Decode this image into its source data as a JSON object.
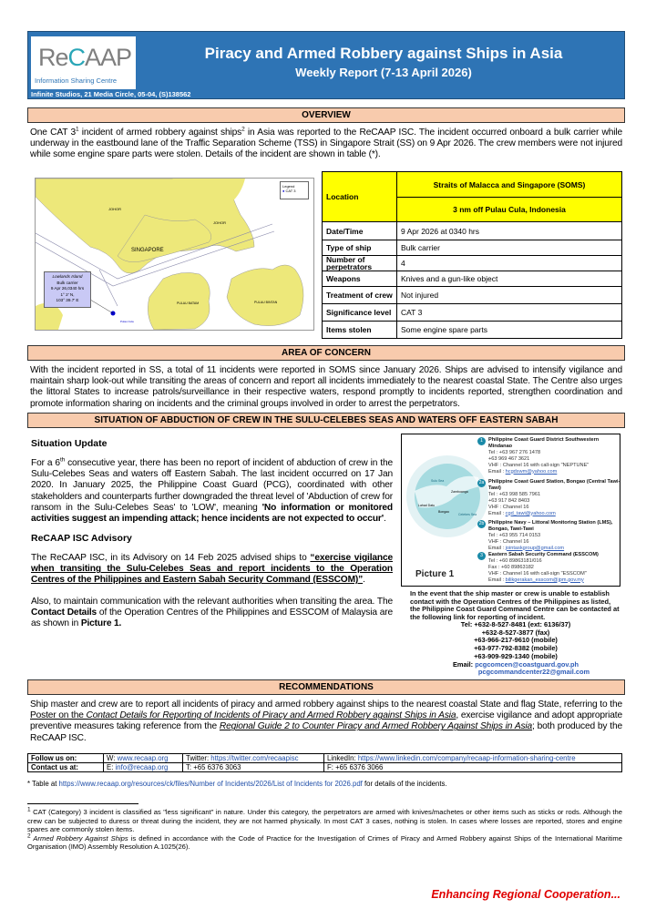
{
  "header": {
    "logo_text": "ReCAAP",
    "logo_subtitle": "Information Sharing Centre",
    "title": "Piracy and Armed Robbery against Ships in Asia",
    "subtitle": "Weekly Report (7-13 April 2026)",
    "address": "Infinite Studios, 21 Media Circle, 05-04, (S)138562",
    "brand_color": "#2e74b5"
  },
  "overview": {
    "heading": "OVERVIEW",
    "text_a": "One CAT 3",
    "text_b": " incident of armed robbery against ships",
    "text_c": " in Asia was reported to the ReCAAP ISC. The incident occurred onboard a bulk carrier while underway in the eastbound lane of the Traffic Separation Scheme (TSS) in Singapore Strait (SS) on 9 Apr 2026.  The crew members were not injured while some engine spare parts were stolen. Details of the incident are shown in table (*).",
    "fn1": "1",
    "fn2": "2"
  },
  "map": {
    "legend_title": "Legend",
    "legend_item": "CAT 3",
    "labels": [
      "JOHOR",
      "JOHOR",
      "SINGAPORE",
      "PULAU BATAM",
      "PULAU BINTAN",
      "Pulau Cula"
    ],
    "callout": [
      "Lowlands Island",
      "Bulk carrier",
      "9 Apr 26,0340 hrs",
      "1° 2' N,",
      "103° 39.7' E"
    ],
    "land_color": "#ede87a"
  },
  "incident": {
    "location_label": "Location",
    "location_region": "Straits of Malacca and Singapore (SOMS)",
    "location_detail": "3 nm off Pulau Cula, Indonesia",
    "rows": [
      {
        "label": "Date/Time",
        "value": "9 Apr 2026 at 0340 hrs"
      },
      {
        "label": "Type of ship",
        "value": "Bulk carrier"
      },
      {
        "label": "Number of perpetrators",
        "value": "4"
      },
      {
        "label": "Weapons",
        "value": "Knives and a gun-like object"
      },
      {
        "label": "Treatment of crew",
        "value": "Not injured"
      },
      {
        "label": "Significance level",
        "value": "CAT 3"
      },
      {
        "label": "Items stolen",
        "value": "Some engine spare parts"
      }
    ]
  },
  "area_of_concern": {
    "heading": "AREA OF CONCERN",
    "text": "With the incident reported in SS, a total of 11 incidents were reported in SOMS since January 2026.  Ships are advised to intensify vigilance and maintain sharp look-out while transiting the areas of concern and report all incidents immediately to the nearest coastal State. The Centre also urges the littoral States to increase patrols/surveillance in their respective waters, respond promptly to incidents reported, strengthen coordination and promote information sharing on incidents and the criminal groups involved in order to arrest the perpetrators."
  },
  "abduction": {
    "heading": "SITUATION OF ABDUCTION OF CREW IN THE SULU-CELEBES SEAS AND WATERS OFF EASTERN SABAH",
    "update_heading": "Situation Update",
    "update_a": "For a 6",
    "update_sup": "th",
    "update_b": " consecutive year, there has been no report of incident of abduction of crew in the Sulu-Celebes Seas and waters off Eastern Sabah. The last incident occurred on 17 Jan 2020.  In January 2025, the Philippine Coast Guard (PCG), coordinated with other stakeholders and counterparts further downgraded the threat level of 'Abduction of crew for ransom in the Sulu-Celebes Seas' to 'LOW', meaning ",
    "update_bold": "'No information or monitored activities suggest an impending attack; hence incidents are not expected to occur'",
    "update_end": ".",
    "advisory_heading": "ReCAAP ISC Advisory",
    "advisory_a": "The ReCAAP ISC, in its Advisory on 14 Feb 2025 advised ships to ",
    "advisory_link": "“exercise vigilance when transiting the Sulu-Celebes Seas and report incidents to the Operation Centres of the Philippines and Eastern Sabah Security Command (ESSCOM)”",
    "advisory_end": ".",
    "also_a": "Also, to maintain communication with the relevant authorities when transiting the area. The ",
    "also_b": "Contact Details",
    "also_c": " of the Operation Centres of the Philippines and ESSCOM of Malaysia are as shown in ",
    "also_d": "Picture 1.",
    "picture_label": "Picture 1",
    "map_labels": [
      "Sulu Sea",
      "Zamboanga",
      "Lahad Datu",
      "Bongao",
      "Celebes Sea"
    ],
    "contacts": [
      {
        "num": "1",
        "title": "Philippine Coast Guard District Southwestern Mindanao",
        "lines": [
          "Tel     : +63 967 276 1478",
          "           +63 969 467 3621",
          "VHF   : Channel 16 with call-sign \"NEPTUNE\""
        ],
        "email_label": "Email  : ",
        "email": "hcgdswm@yahoo.com"
      },
      {
        "num": "2a",
        "title": "Philippine Coast Guard Station, Bongao (Central Tawi-Tawi)",
        "lines": [
          "Tel     : +63 998 585 7961",
          "           +63 917 842 8403",
          "VHF   : Channel 16"
        ],
        "email_label": "Email  : ",
        "email": "cgd_tawi@yahoo.com"
      },
      {
        "num": "2b",
        "title": "Philippine Navy – Littoral Monitoring Station (LMS), Bongao, Tawi-Tawi",
        "lines": [
          "Tel     : +63 955 714 0153",
          "VHF   : Channel 16"
        ],
        "email_label": "Email  : ",
        "email": "jointaskgroup@gmail.com"
      },
      {
        "num": "3",
        "title": "Eastern Sabah Security Command (ESSCOM)",
        "lines": [
          "Tel     : +60 89863181/016",
          "Fax    : +60 89863182",
          "VHF   : Channel 16 with call-sign \"ESSCOM\""
        ],
        "email_label": "Email  : ",
        "email": "bilikgerakan_esscom@jpm.gov.my"
      }
    ],
    "fallback_a": "In the event that the ship master or crew is unable to establish contact with the Operation Centres of the Philippines as listed, the ",
    "fallback_b": "Philippine Coast Guard Command Centre",
    "fallback_c": " can be contacted at the following link for reporting of incident.",
    "phones": [
      "Tel: +632-8-527-8481 (ext: 6136/37)",
      "+632-8-527-3877 (fax)",
      "+63-966-217-9610 (mobile)",
      "+63-977-792-8382 (mobile)",
      "+63-909-929-1340 (mobile)"
    ],
    "email_label": "Email: ",
    "emails": [
      "pcgcomcen@coastguard.gov.ph",
      "pcgcommandcenter22@gmail.com"
    ]
  },
  "recommendations": {
    "heading": "RECOMMENDATIONS",
    "a": "Ship master and crew are to report all incidents of piracy and armed robbery against ships to the nearest coastal State and flag State, referring to the ",
    "link1_a": "Poster on the ",
    "link1_b": "Contact Details for Reporting of Incidents of Piracy and Armed Robbery against Ships in Asia",
    "b": ", exercise vigilance and adopt appropriate preventive measures taking reference from the ",
    "link2": "Regional Guide 2 to Counter Piracy and Armed Robbery Against Ships in Asia",
    "c": "; both produced by the ReCAAP ISC."
  },
  "contact": {
    "follow_label": "Follow us on:",
    "web_label": "W: ",
    "web": "www.recaap.org",
    "twitter_label": "Twitter: ",
    "twitter": "https://twitter.com/recaapisc",
    "linkedin_label": "LinkedIn: ",
    "linkedin": "https://www.linkedin.com/company/recaap-information-sharing-centre",
    "contact_label": "Contact us at:",
    "email_label": "E: ",
    "email": "info@recaap.org",
    "tel": "T: +65 6376 3063",
    "fax": "F: +65 6376 3066"
  },
  "table_note": {
    "a": "* Table at ",
    "link": "https://www.recaap.org/resources/ck/files/Number of Incidents/2026/List of Incidents for 2026.pdf",
    "b": " for details of the incidents."
  },
  "footnotes": {
    "fn1_num": "1",
    "fn1": " CAT (Category) 3 incident is classified as \"less significant\" in nature. Under this category, the perpetrators are armed with knives/machetes or other items such as sticks or rods. Although the crew can be subjected to duress or threat during the incident, they are not harmed physically. In most CAT 3 cases, nothing is stolen. In cases where losses are reported, stores and engine spares are commonly stolen items.",
    "fn2_num": "2",
    "fn2_italic": " Armed Robbery Against Ships",
    "fn2": " is defined in accordance with the Code of Practice for the Investigation of Crimes of Piracy and Armed Robbery against Ships of the International Maritime Organisation (IMO) Assembly Resolution A.1025(26)."
  },
  "footer": {
    "tagline": "Enhancing Regional Cooperation..."
  }
}
